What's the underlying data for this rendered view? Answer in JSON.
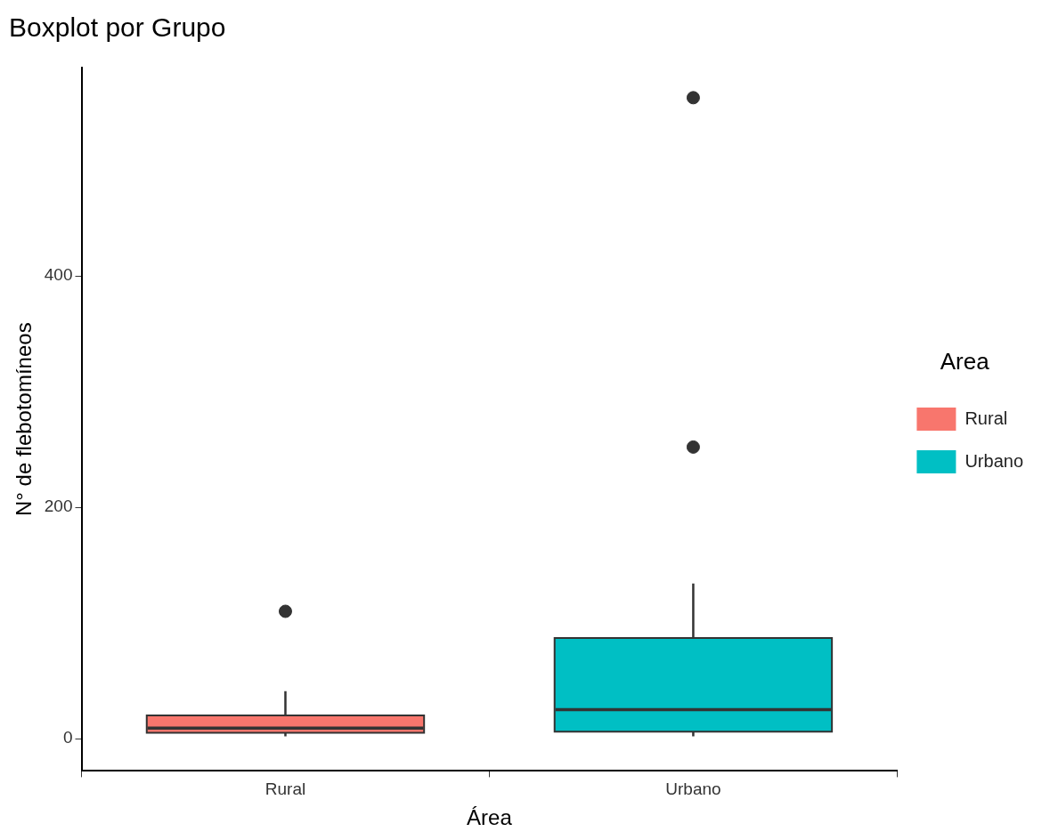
{
  "chart_data": {
    "type": "box",
    "title": "Boxplot por Grupo",
    "xlabel": "Área",
    "ylabel": "N° de flebotomíneos",
    "legend_title": "Area",
    "legend": "right",
    "categories": [
      "Rural",
      "Urbano"
    ],
    "series": [
      {
        "name": "Rural",
        "color": "#f8766d",
        "boxes": [
          {
            "low": 2,
            "q1": 5,
            "median": 9,
            "q3": 20,
            "high": 41,
            "outliers": [
              110
            ]
          },
          null
        ]
      },
      {
        "name": "Urbano",
        "color": "#00bfc4",
        "boxes": [
          null,
          {
            "low": 2,
            "q1": 6,
            "median": 25,
            "q3": 87,
            "high": 134,
            "outliers": [
              252,
              554
            ]
          }
        ]
      }
    ],
    "ylim": [
      -28,
      580
    ],
    "yticks": [
      0,
      200,
      400
    ],
    "grid": false
  }
}
